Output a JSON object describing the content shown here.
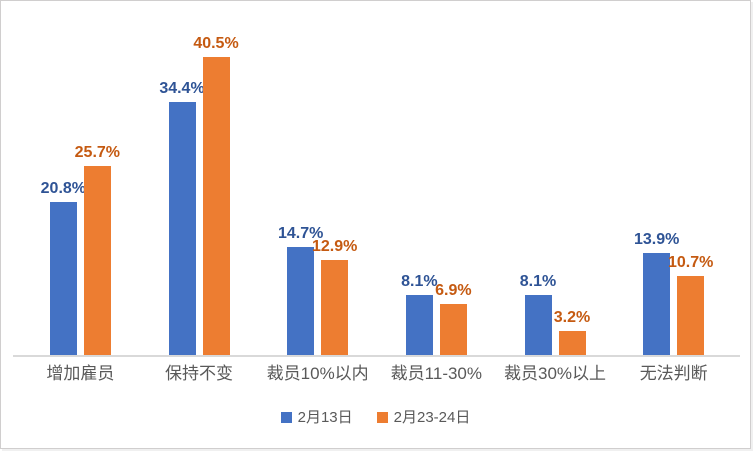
{
  "chart_data": {
    "type": "bar",
    "categories": [
      "增加雇员",
      "保持不变",
      "裁员10%以内",
      "裁员11-30%",
      "裁员30%以上",
      "无法判断"
    ],
    "series": [
      {
        "name": "2月13日",
        "color": "#4472C4",
        "label_color": "#2E5395",
        "values": [
          20.8,
          34.4,
          14.7,
          8.1,
          8.1,
          13.9
        ]
      },
      {
        "name": "2月23-24日",
        "color": "#ED7D31",
        "label_color": "#C55A11",
        "values": [
          25.7,
          40.5,
          12.9,
          6.9,
          3.2,
          10.7
        ]
      }
    ],
    "value_suffix": "%",
    "data_labels": true,
    "title": "",
    "xlabel": "",
    "ylabel": "",
    "ylim": [
      0,
      45
    ],
    "grid": false,
    "legend_position": "bottom",
    "axis_line_color": "#D9D9D9",
    "category_label_color": "#595959",
    "legend_text_color": "#595959"
  }
}
